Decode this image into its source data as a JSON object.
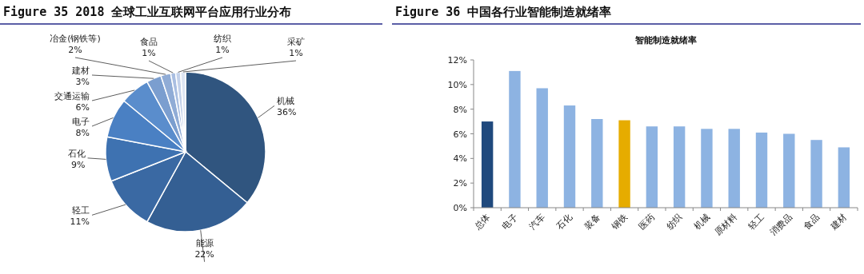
{
  "chart_data": [
    {
      "type": "pie",
      "title": "Figure 35 2018 全球工业互联网平台应用行业分布",
      "categories": [
        "机械",
        "能源",
        "轻工",
        "石化",
        "电子",
        "交通运输",
        "建材",
        "冶金(钢铁等)",
        "食品",
        "纺织",
        "采矿"
      ],
      "values": [
        36,
        22,
        11,
        9,
        8,
        6,
        3,
        2,
        1,
        1,
        1
      ],
      "colors": [
        "#30557f",
        "#345f93",
        "#3a69a3",
        "#3e72b1",
        "#4a80c3",
        "#5a8dcc",
        "#7b9ecf",
        "#90acd6",
        "#a9bee1",
        "#c3d1ea",
        "#dde5f3"
      ],
      "value_labels": [
        "36%",
        "22%",
        "11%",
        "9%",
        "8%",
        "6%",
        "3%",
        "2%",
        "1%",
        "1%",
        "1%"
      ]
    },
    {
      "type": "bar",
      "title": "Figure 36 中国各行业智能制造就绪率",
      "subtitle": "智能制造就绪率",
      "categories": [
        "总体",
        "电子",
        "汽车",
        "石化",
        "装备",
        "钢铁",
        "医药",
        "纺织",
        "机械",
        "原材料",
        "轻工",
        "消费品",
        "食品",
        "建材"
      ],
      "values": [
        7.0,
        11.1,
        9.7,
        8.3,
        7.2,
        7.1,
        6.6,
        6.6,
        6.4,
        6.4,
        6.1,
        6.0,
        5.5,
        4.9
      ],
      "colors": [
        "#1f497d",
        "#8db3e2",
        "#8db3e2",
        "#8db3e2",
        "#8db3e2",
        "#e6ac00",
        "#8db3e2",
        "#8db3e2",
        "#8db3e2",
        "#8db3e2",
        "#8db3e2",
        "#8db3e2",
        "#8db3e2",
        "#8db3e2"
      ],
      "ylim": [
        0,
        12
      ],
      "yticks": [
        {
          "value": 0,
          "label": "0%"
        },
        {
          "value": 2,
          "label": "2%"
        },
        {
          "value": 4,
          "label": "4%"
        },
        {
          "value": 6,
          "label": "6%"
        },
        {
          "value": 8,
          "label": "8%"
        },
        {
          "value": 10,
          "label": "10%"
        },
        {
          "value": 12,
          "label": "12%"
        }
      ]
    }
  ]
}
